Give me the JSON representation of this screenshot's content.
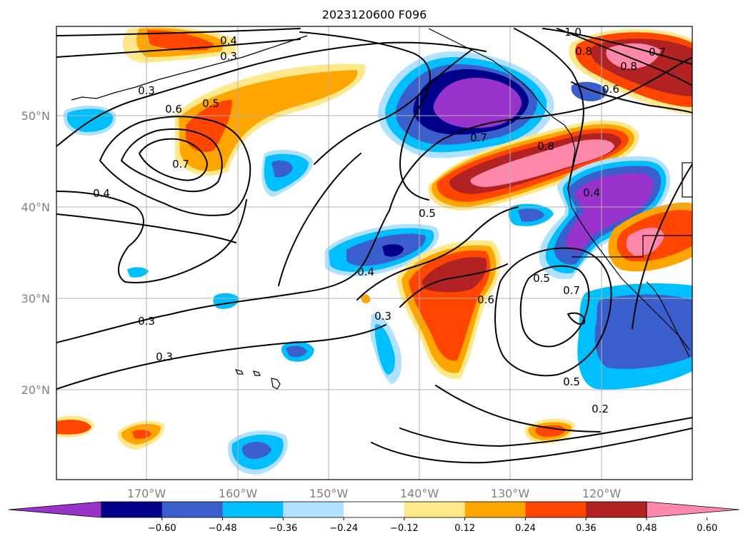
{
  "title": "2023120600 F096",
  "lat_labels": [
    "50°N",
    "40°N",
    "30°N",
    "20°N"
  ],
  "lon_labels": [
    "170°W",
    "160°W",
    "150°W",
    "140°W",
    "130°W",
    "120°W"
  ],
  "colorbar": {
    "tick_labels": [
      "−0.60",
      "−0.48",
      "−0.36",
      "−0.24",
      "−0.12",
      "0.12",
      "0.24",
      "0.36",
      "0.48",
      "0.60"
    ],
    "colors": [
      "#9933cc",
      "#00008b",
      "#3a5fcd",
      "#00bfff",
      "#b0e2ff",
      "#ffffff",
      "#ffe88a",
      "#ffa500",
      "#ff4500",
      "#b22222",
      "#ff88aa"
    ]
  },
  "contour_labels": [
    "0.4",
    "0.3",
    "0.3",
    "0.6",
    "0.5",
    "0.7",
    "0.4",
    "0.3",
    "0.3",
    "1.0",
    "0.8",
    "0.7",
    "0.8",
    "0.6",
    "0.7",
    "0.8",
    "0.4",
    "0.5",
    "0.4",
    "0.3",
    "0.6",
    "0.5",
    "0.7",
    "0.5",
    "0.2"
  ]
}
